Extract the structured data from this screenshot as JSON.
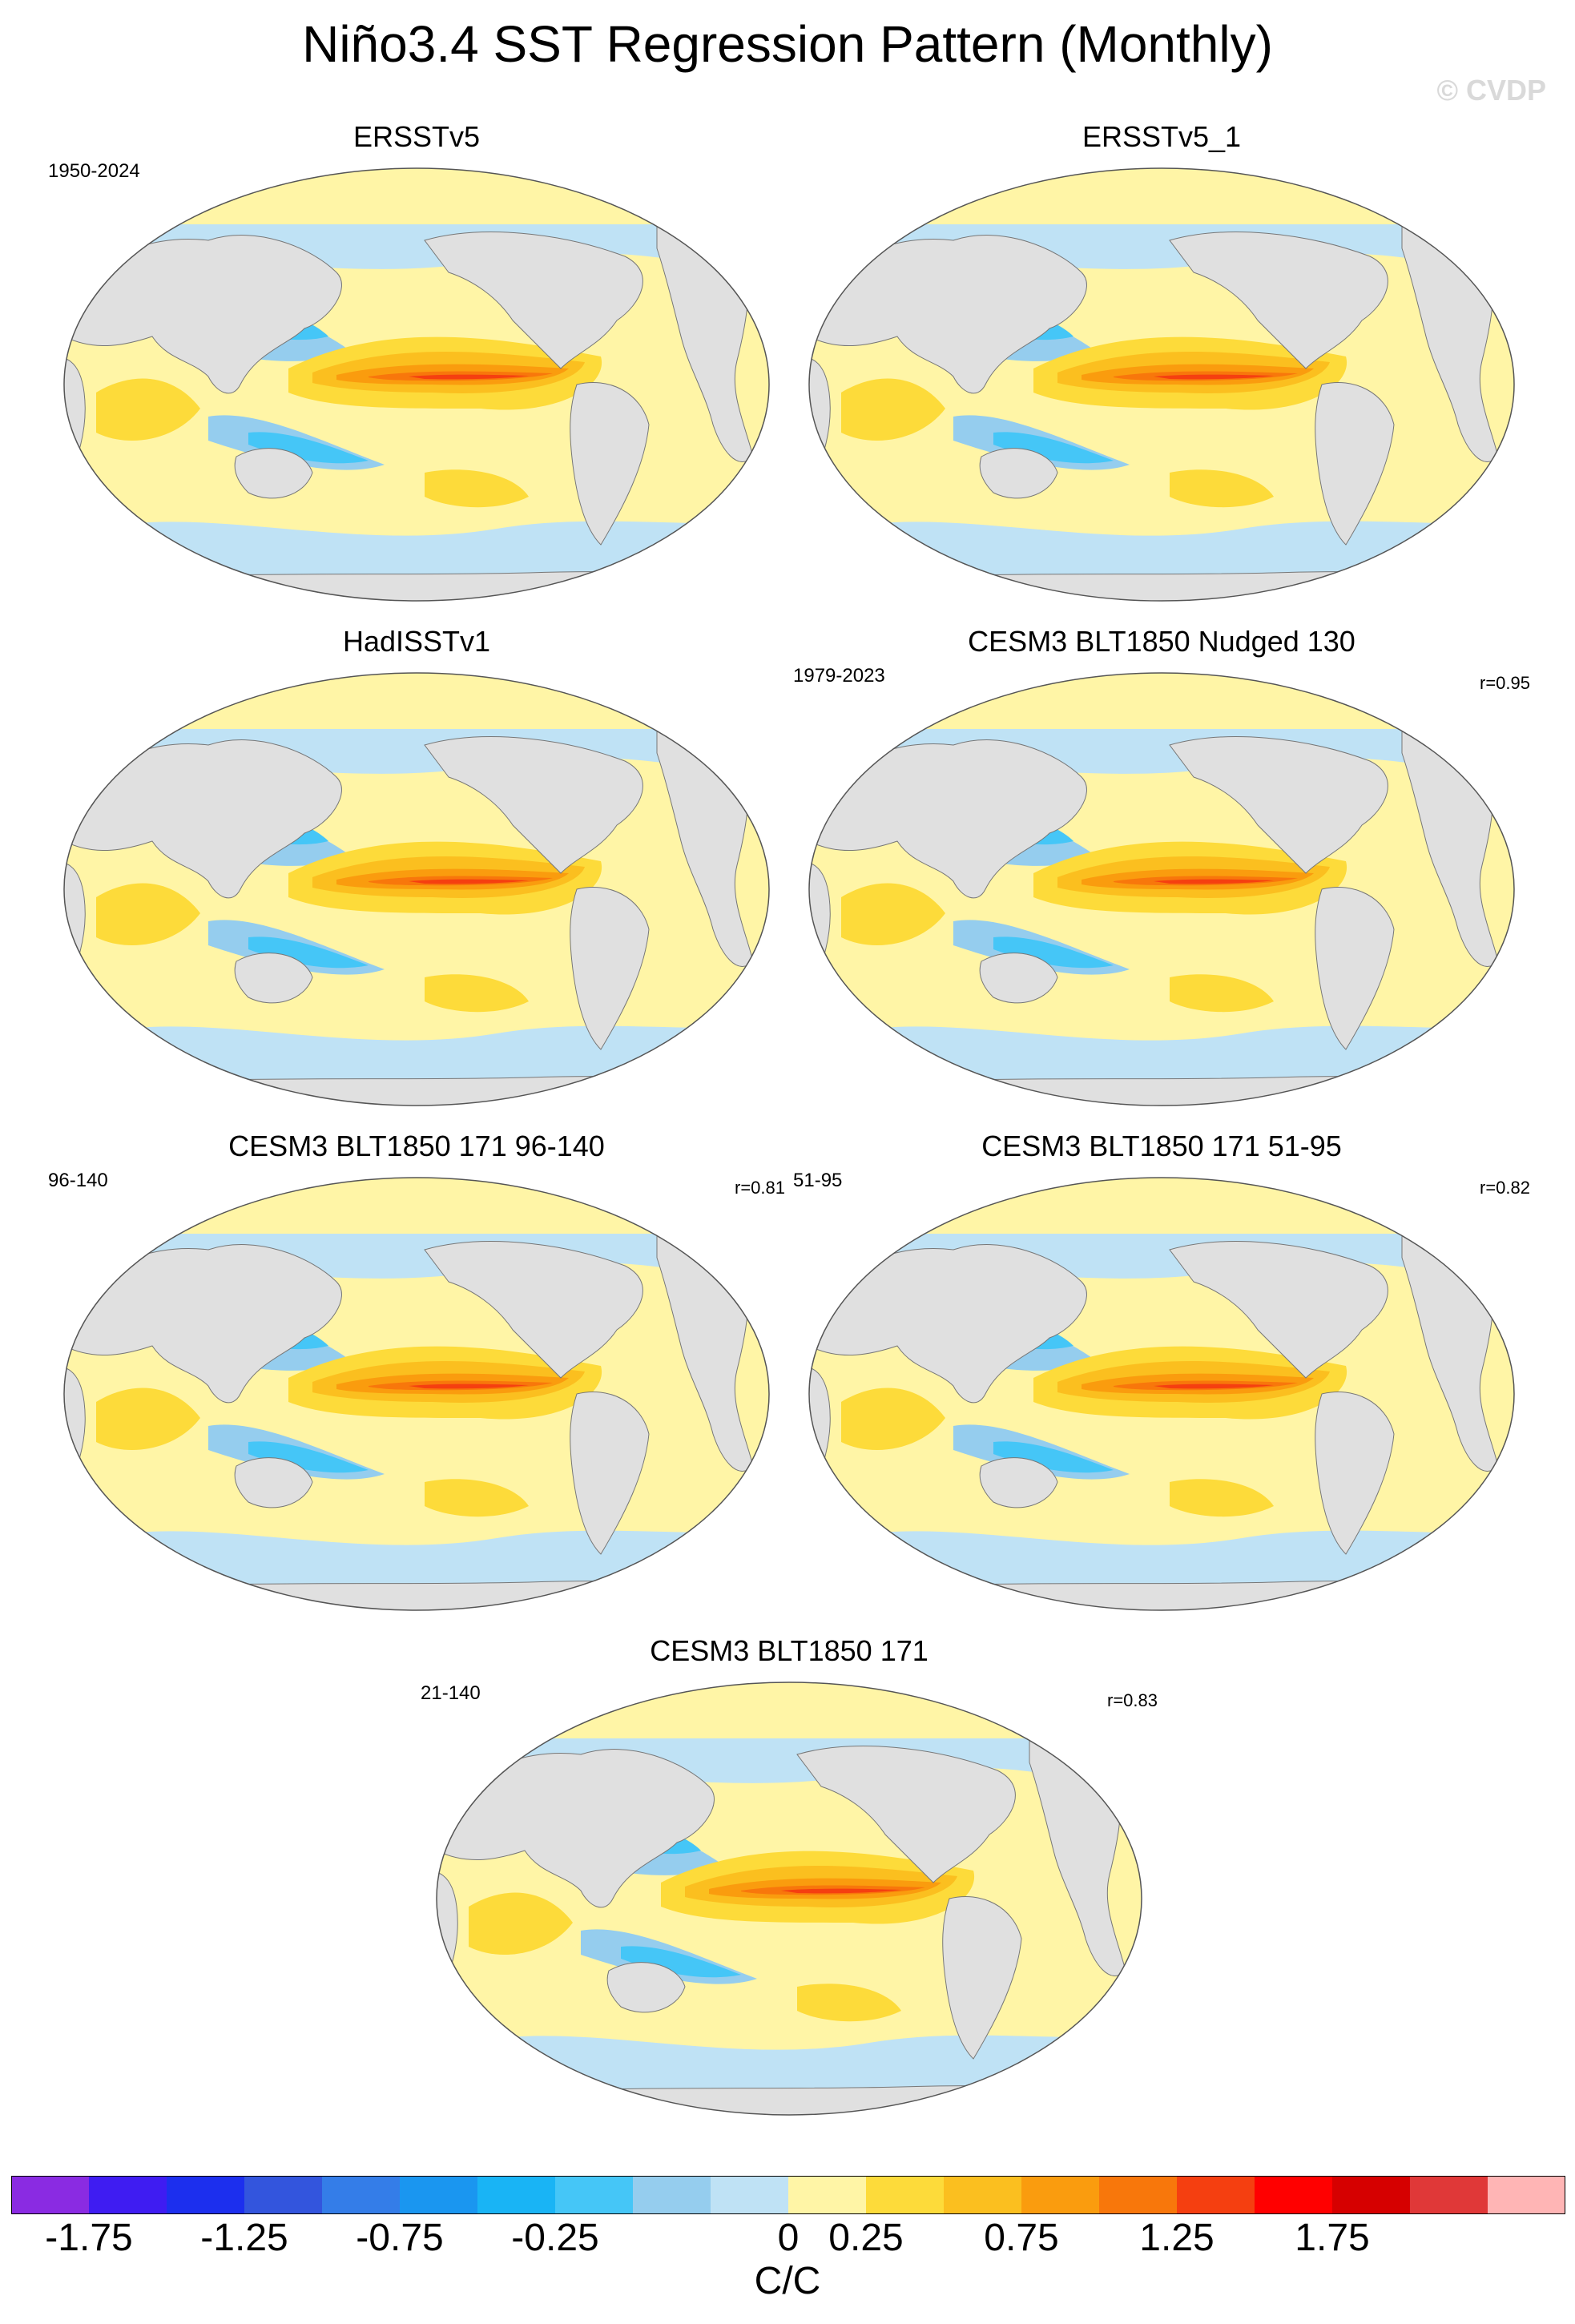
{
  "figure": {
    "title": "Niño3.4 SST Regression Pattern (Monthly)",
    "credit": "© CVDP"
  },
  "panels": [
    {
      "title": "ERSSTv5",
      "period": "1950-2024",
      "corr": ""
    },
    {
      "title": "ERSSTv5_1",
      "period": "",
      "corr": ""
    },
    {
      "title": "HadISSTv1",
      "period": "",
      "corr": ""
    },
    {
      "title": "CESM3 BLT1850 Nudged 130",
      "period": "1979-2023",
      "corr": "r=0.95"
    },
    {
      "title": "CESM3 BLT1850 171 96-140",
      "period": "96-140",
      "corr": "r=0.81"
    },
    {
      "title": "CESM3 BLT1850 171 51-95",
      "period": "51-95",
      "corr": "r=0.82"
    },
    {
      "title": "CESM3 BLT1850 171",
      "period": "21-140",
      "corr": "r=0.83"
    }
  ],
  "colorbar": {
    "unit": "C/C",
    "tick_labels": [
      "-1.75",
      "-1.25",
      "-0.75",
      "-0.25",
      "0",
      "0.25",
      "0.75",
      "1.25",
      "1.75"
    ],
    "colors": [
      "#8a2be2",
      "#3f1cf2",
      "#1c2fee",
      "#3355dd",
      "#347de8",
      "#1a96f0",
      "#19b4f5",
      "#45c6f7",
      "#95cdee",
      "#bfe2f5",
      "#fff5a6",
      "#fddb3a",
      "#fbbf1f",
      "#fa9c0e",
      "#f8770b",
      "#f53f10",
      "#ff0000",
      "#d60000",
      "#e03838",
      "#ffb5b5"
    ]
  },
  "map_colors": {
    "ocean_neutral": "#fff5a6",
    "cool_light": "#bfe2f5",
    "cool_mid": "#95cdee",
    "cool_strong": "#45c6f7",
    "cool_deep": "#19b4f5",
    "warm_light": "#fddb3a",
    "warm_mid": "#fbbf1f",
    "warm_strong": "#fa9c0e",
    "warm_deep": "#f8770b",
    "warm_core": "#f53f10",
    "land": "#e0e0e0"
  }
}
